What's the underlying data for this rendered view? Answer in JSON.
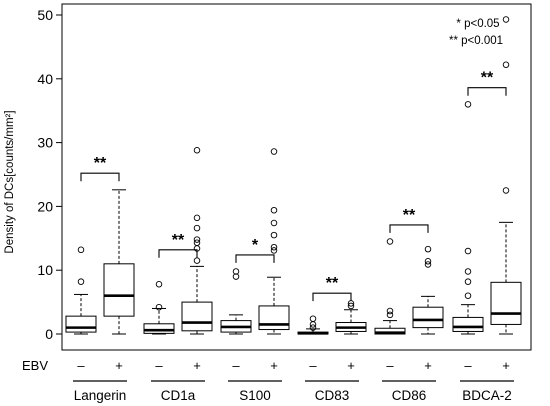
{
  "chart_data": {
    "type": "boxplot",
    "ylabel": "Density of DCs[counts/mm²]",
    "ylim": [
      0,
      50
    ],
    "yticks": [
      0,
      10,
      20,
      30,
      40,
      50
    ],
    "row_label": "EBV",
    "levels": [
      "–",
      "+"
    ],
    "legend": [
      "*  p<0.05",
      "** p<0.001"
    ],
    "groups": [
      {
        "name": "Langerin",
        "significance": "**",
        "boxes": [
          {
            "ebv": "–",
            "min": 0,
            "q1": 0.3,
            "median": 1.0,
            "q3": 2.8,
            "max": 6.2,
            "outliers": [
              8.2,
              13.2
            ]
          },
          {
            "ebv": "+",
            "min": 0,
            "q1": 2.8,
            "median": 6.0,
            "q3": 11.0,
            "max": 22.6,
            "outliers": []
          }
        ]
      },
      {
        "name": "CD1a",
        "significance": "**",
        "boxes": [
          {
            "ebv": "–",
            "min": 0,
            "q1": 0.1,
            "median": 0.6,
            "q3": 1.6,
            "max": 4.0,
            "outliers": [
              4.2,
              7.8
            ]
          },
          {
            "ebv": "+",
            "min": 0,
            "q1": 0.5,
            "median": 1.8,
            "q3": 5.0,
            "max": 10.6,
            "outliers": [
              11.5,
              13.4,
              14.3,
              14.8,
              16.6,
              18.2,
              28.8
            ]
          }
        ]
      },
      {
        "name": "S100",
        "significance": "*",
        "boxes": [
          {
            "ebv": "–",
            "min": 0,
            "q1": 0.3,
            "median": 1.1,
            "q3": 2.1,
            "max": 3.0,
            "outliers": [
              9.0,
              9.8
            ]
          },
          {
            "ebv": "+",
            "min": 0,
            "q1": 0.7,
            "median": 1.5,
            "q3": 4.4,
            "max": 8.9,
            "outliers": [
              13.1,
              13.6,
              15.5,
              17.4,
              19.4,
              28.6
            ]
          }
        ]
      },
      {
        "name": "CD83",
        "significance": "**",
        "boxes": [
          {
            "ebv": "–",
            "min": 0,
            "q1": 0,
            "median": 0.1,
            "q3": 0.3,
            "max": 0.8,
            "outliers": [
              1.0,
              1.5,
              2.4
            ]
          },
          {
            "ebv": "+",
            "min": 0,
            "q1": 0.4,
            "median": 1.0,
            "q3": 1.8,
            "max": 3.8,
            "outliers": [
              4.4,
              4.8
            ]
          }
        ]
      },
      {
        "name": "CD86",
        "significance": "**",
        "boxes": [
          {
            "ebv": "–",
            "min": 0,
            "q1": 0,
            "median": 0.2,
            "q3": 0.9,
            "max": 2.1,
            "outliers": [
              3.0,
              3.6,
              14.5
            ]
          },
          {
            "ebv": "+",
            "min": 0,
            "q1": 1.0,
            "median": 2.2,
            "q3": 4.2,
            "max": 5.9,
            "outliers": [
              10.9,
              11.4,
              13.3
            ]
          }
        ]
      },
      {
        "name": "BDCA-2",
        "significance": "**",
        "boxes": [
          {
            "ebv": "–",
            "min": 0,
            "q1": 0.4,
            "median": 1.1,
            "q3": 2.6,
            "max": 4.6,
            "outliers": [
              6.0,
              8.2,
              9.8,
              13.0,
              36.0
            ]
          },
          {
            "ebv": "+",
            "min": 0,
            "q1": 1.5,
            "median": 3.2,
            "q3": 8.1,
            "max": 17.5,
            "outliers": [
              22.5,
              42.2,
              49.3
            ]
          }
        ]
      }
    ]
  }
}
